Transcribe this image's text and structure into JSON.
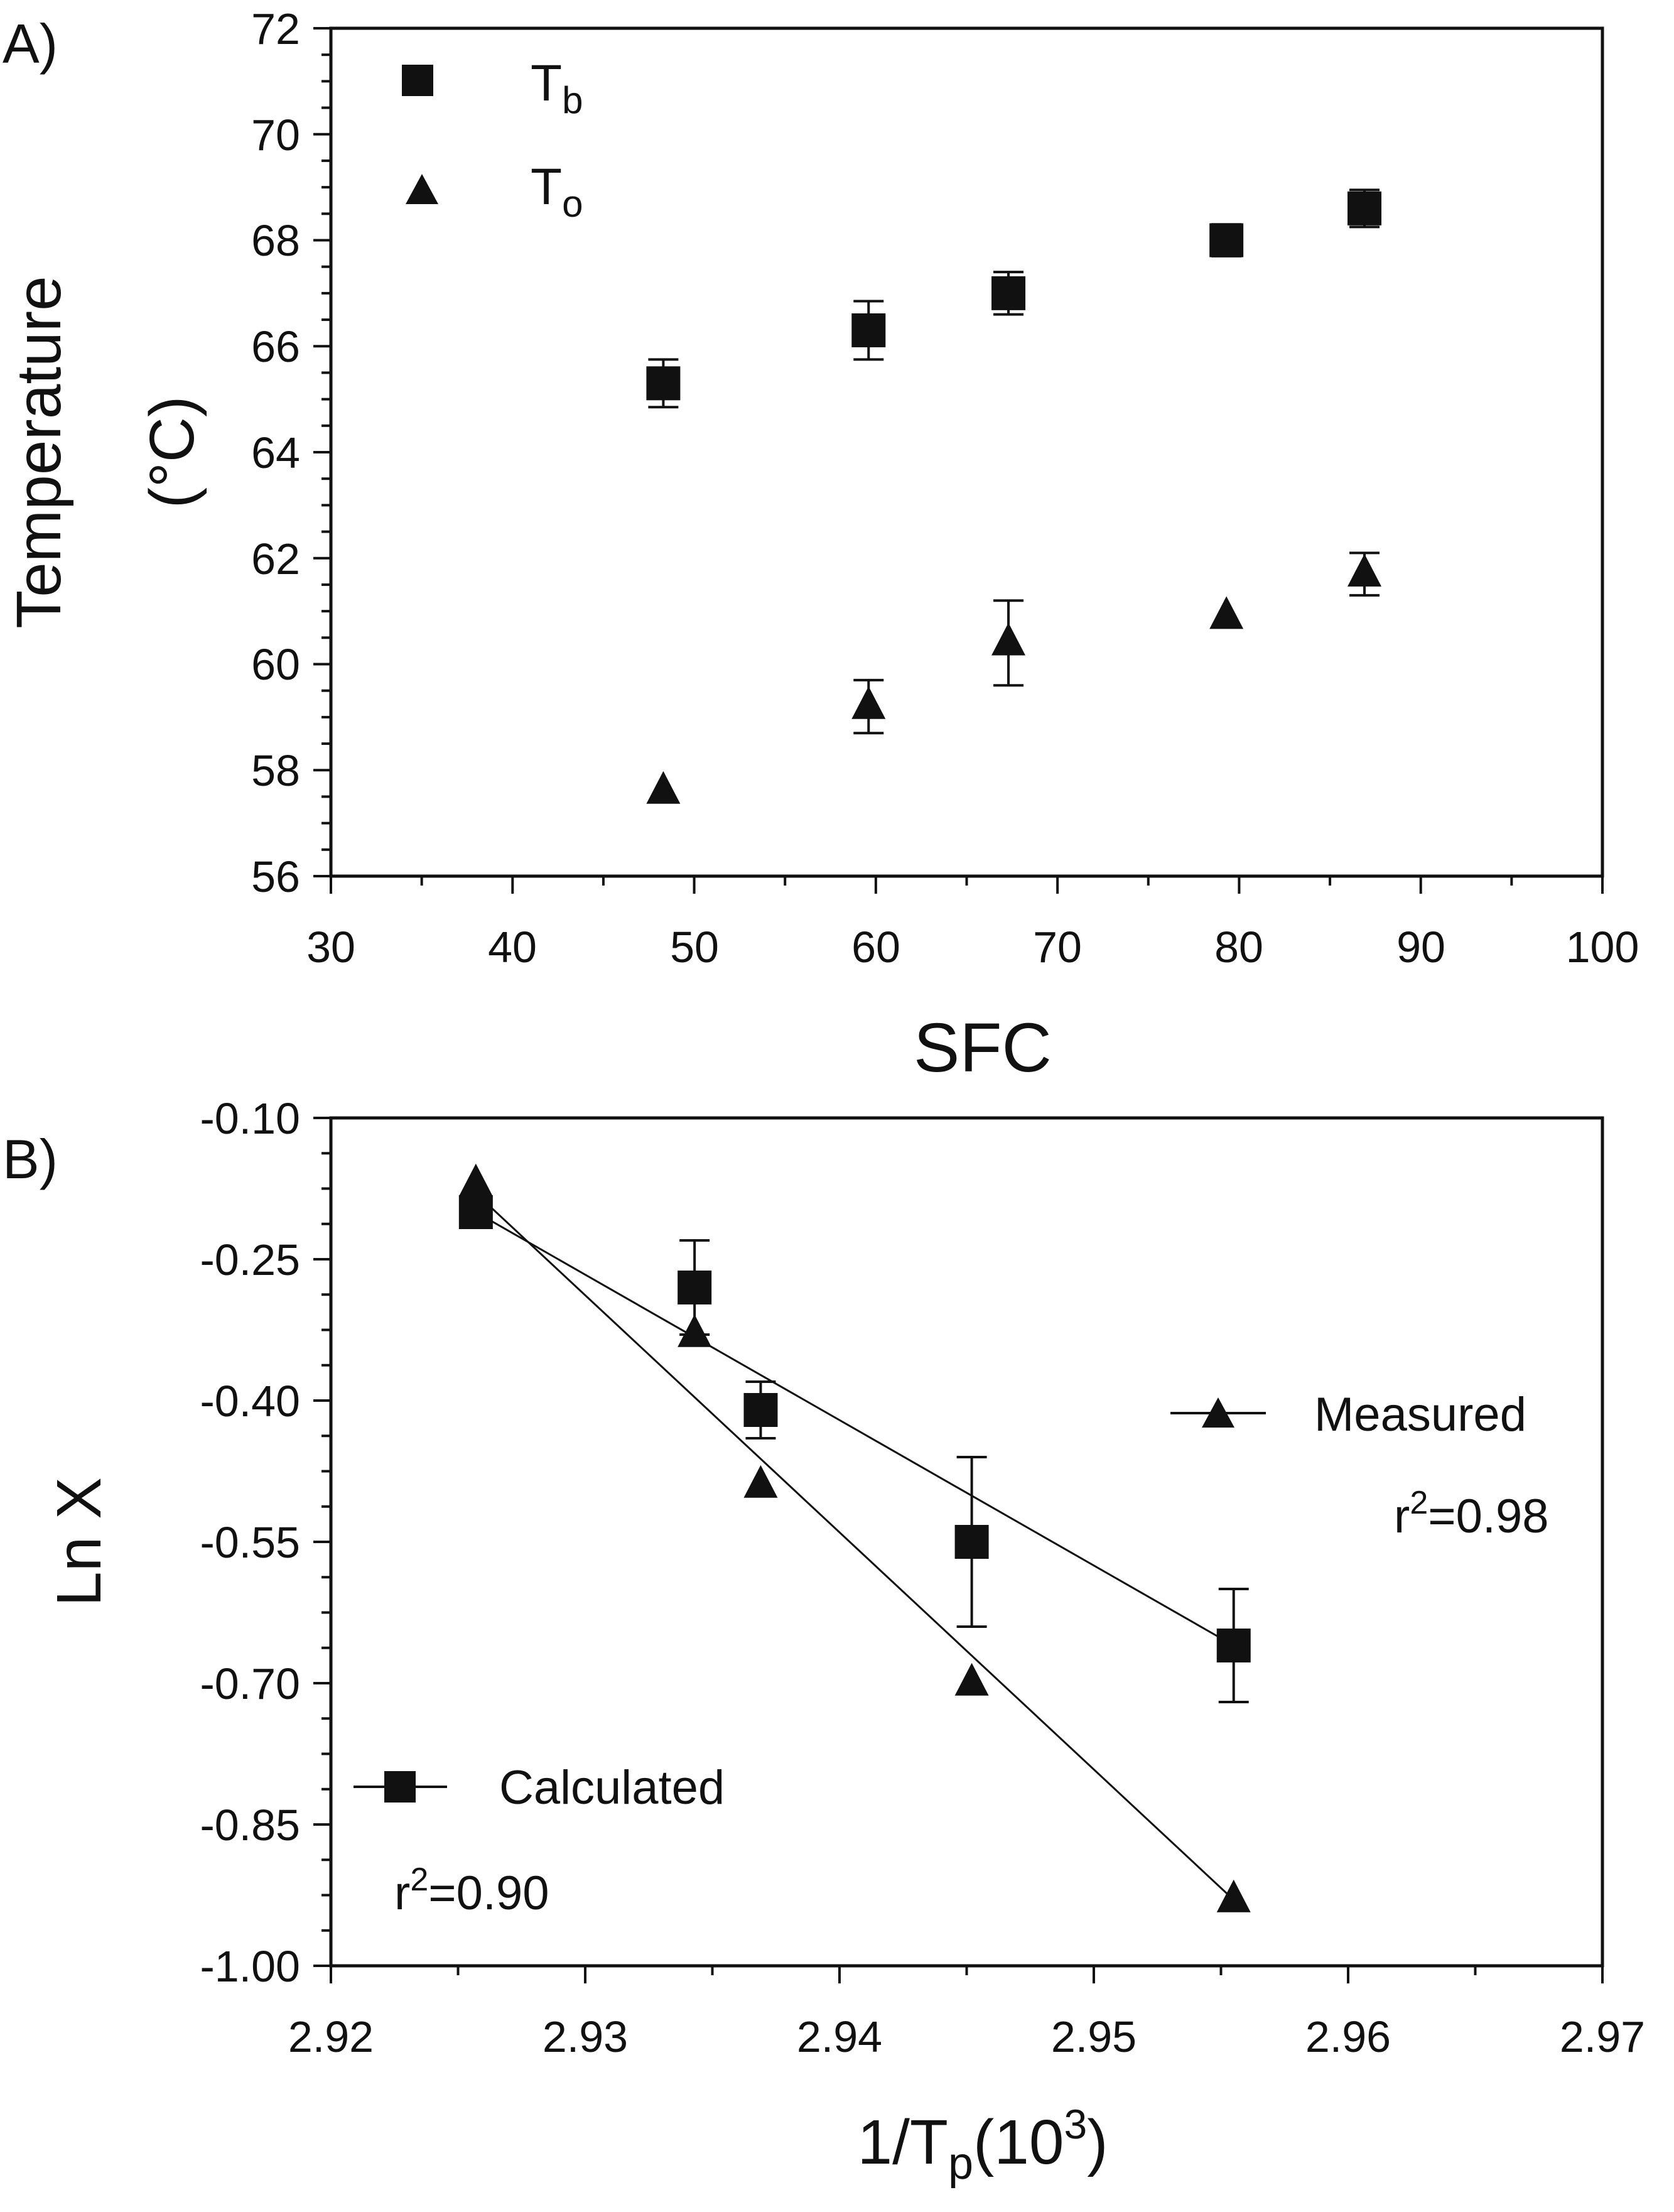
{
  "figure": {
    "colors": {
      "ink": "#111111",
      "background": "#ffffff"
    }
  },
  "chart_data": [
    {
      "panel_label": "A)",
      "type": "scatter",
      "title": "",
      "xlabel": "SFC",
      "ylabel_line1": "Temperature",
      "ylabel_line2": "(°C)",
      "xlim": [
        30,
        100
      ],
      "ylim": [
        56,
        72
      ],
      "xticks": [
        30,
        40,
        50,
        60,
        70,
        80,
        90,
        100
      ],
      "yticks": [
        56,
        58,
        60,
        62,
        64,
        66,
        68,
        70,
        72
      ],
      "xtick_labels": [
        "30",
        "40",
        "50",
        "60",
        "70",
        "80",
        "90",
        "100"
      ],
      "ytick_labels": [
        "56",
        "58",
        "60",
        "62",
        "64",
        "66",
        "68",
        "70",
        "72"
      ],
      "grid": false,
      "legend_position": "top-left",
      "series": [
        {
          "name": "T",
          "name_sub": "b",
          "marker": "square",
          "x": [
            48.3,
            59.6,
            67.3,
            79.3,
            86.9
          ],
          "y": [
            65.3,
            66.3,
            67.0,
            68.0,
            68.6
          ],
          "err": [
            0.45,
            0.55,
            0.4,
            0.3,
            0.35
          ]
        },
        {
          "name": "T",
          "name_sub": "o",
          "marker": "triangle",
          "x": [
            48.3,
            59.6,
            67.3,
            79.3,
            86.9
          ],
          "y": [
            57.6,
            59.2,
            60.4,
            60.9,
            61.7
          ],
          "err": [
            0,
            0.5,
            0.8,
            0,
            0.4
          ]
        }
      ]
    },
    {
      "panel_label": "B)",
      "type": "scatter",
      "title": "",
      "xlabel_main": "1/T",
      "xlabel_sub": "p",
      "xlabel_paren_open": "(10",
      "xlabel_sup": "3",
      "xlabel_paren_close": ")",
      "ylabel": "Ln X",
      "xlim": [
        2.92,
        2.97
      ],
      "ylim": [
        -1.0,
        -0.1
      ],
      "xticks": [
        2.92,
        2.93,
        2.94,
        2.95,
        2.96,
        2.97
      ],
      "yticks": [
        -1.0,
        -0.85,
        -0.7,
        -0.55,
        -0.4,
        -0.25,
        -0.1
      ],
      "xtick_labels": [
        "2.92",
        "2.93",
        "2.94",
        "2.95",
        "2.96",
        "2.97"
      ],
      "ytick_labels": [
        "-1.00",
        "-0.85",
        "-0.70",
        "-0.55",
        "-0.40",
        "-0.25",
        "-0.10"
      ],
      "grid": false,
      "series": [
        {
          "name": "Measured",
          "marker": "triangle",
          "x": [
            2.9257,
            2.9343,
            2.9369,
            2.9452,
            2.9555
          ],
          "y": [
            -0.17,
            -0.33,
            -0.49,
            -0.7,
            -0.93
          ],
          "err": [
            0,
            0,
            0,
            0,
            0
          ],
          "fit": {
            "x": [
              2.9257,
              2.9555
            ],
            "y": [
              -0.18,
              -0.93
            ]
          },
          "r2_prefix": "r",
          "r2_sup": "2",
          "r2_value": "=0.98"
        },
        {
          "name": "Calculated",
          "marker": "square",
          "x": [
            2.9257,
            2.9343,
            2.9369,
            2.9452,
            2.9555
          ],
          "y": [
            -0.2,
            -0.28,
            -0.41,
            -0.55,
            -0.66
          ],
          "err": [
            0,
            0.05,
            0.03,
            0.09,
            0.06
          ],
          "fit": {
            "x": [
              2.9257,
              2.9555
            ],
            "y": [
              -0.2,
              -0.66
            ]
          },
          "r2_prefix": "r",
          "r2_sup": "2",
          "r2_value": "=0.90"
        }
      ]
    }
  ]
}
